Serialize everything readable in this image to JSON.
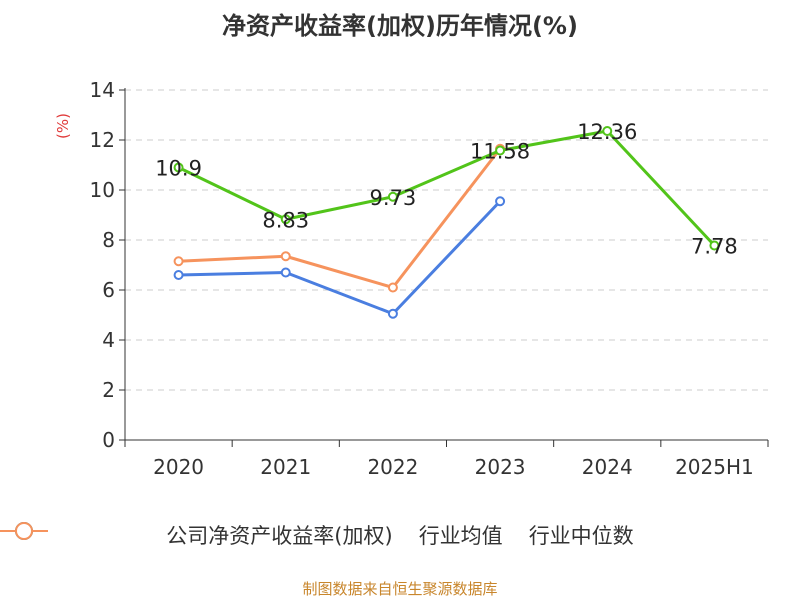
{
  "title": "净资产收益率(加权)历年情况(%)",
  "footer": "制图数据来自恒生聚源数据库",
  "colors": {
    "company": "#52c41a",
    "industry_avg": "#4a7ee0",
    "industry_median": "#f6935d",
    "ylabel": "#e03a3a",
    "grid": "#cccccc",
    "axis": "#333333"
  },
  "chart_data": {
    "type": "line",
    "title": "净资产收益率(加权)历年情况(%)",
    "xlabel": "",
    "ylabel": "(%)",
    "categories": [
      "2020",
      "2021",
      "2022",
      "2023",
      "2024",
      "2025H1"
    ],
    "ylim": [
      0,
      14
    ],
    "yticks": [
      0,
      2,
      4,
      6,
      8,
      10,
      12,
      14
    ],
    "grid": true,
    "legend_position": "bottom",
    "series": [
      {
        "name": "公司净资产收益率(加权)",
        "color": "#52c41a",
        "values": [
          10.9,
          8.83,
          9.73,
          11.58,
          12.36,
          7.78
        ],
        "labels": [
          "10.9",
          "8.83",
          "9.73",
          "11.58",
          "12.36",
          "7.78"
        ]
      },
      {
        "name": "行业均值",
        "color": "#4a7ee0",
        "values": [
          6.6,
          6.7,
          5.05,
          9.55,
          null,
          null
        ]
      },
      {
        "name": "行业中位数",
        "color": "#f6935d",
        "values": [
          7.15,
          7.35,
          6.1,
          11.65,
          null,
          null
        ]
      }
    ]
  }
}
